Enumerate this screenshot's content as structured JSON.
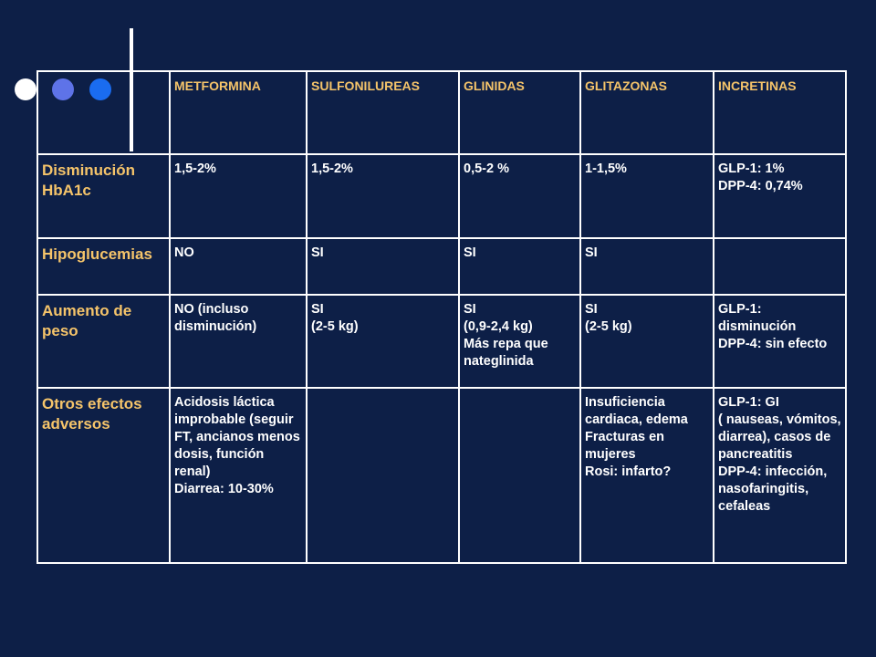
{
  "decor": {
    "dot_colors": [
      "#ffffff",
      "#5e73e8",
      "#1a6cf0"
    ]
  },
  "header": {
    "columns": [
      "METFORMINA",
      "SULFONILUREAS",
      "GLINIDAS",
      "GLITAZONAS",
      "INCRETINAS"
    ]
  },
  "rows": [
    {
      "label": "Disminución HbA1c",
      "cells": [
        [
          "1,5-2%"
        ],
        [
          "1,5-2%"
        ],
        [
          "0,5-2 %"
        ],
        [
          "1-1,5%"
        ],
        [
          "GLP-1: 1%",
          "DPP-4: 0,74%"
        ]
      ]
    },
    {
      "label": "Hipoglucemias",
      "cells": [
        [
          "NO"
        ],
        [
          "SI"
        ],
        [
          "SI"
        ],
        [
          "SI"
        ],
        []
      ]
    },
    {
      "label": "Aumento de peso",
      "cells": [
        [
          "NO (incluso disminución)"
        ],
        [
          "SI",
          "(2-5 kg)"
        ],
        [
          "SI",
          "(0,9-2,4 kg)",
          "Más repa que nateglinida"
        ],
        [
          "SI",
          "(2-5 kg)"
        ],
        [
          "GLP-1: disminución",
          "DPP-4: sin efecto"
        ]
      ]
    },
    {
      "label": "Otros efectos adversos",
      "cells": [
        [
          "Acidosis láctica improbable (seguir FT, ancianos menos dosis, función renal)",
          "Diarrea: 10-30%"
        ],
        [],
        [],
        [
          "Insuficiencia cardiaca, edema",
          "Fracturas en mujeres",
          "Rosi: infarto?"
        ],
        [
          "GLP-1: GI",
          "( nauseas, vómitos, diarrea), casos de pancreatitis",
          "DPP-4: infección, nasofaringitis, cefaleas"
        ]
      ]
    }
  ]
}
